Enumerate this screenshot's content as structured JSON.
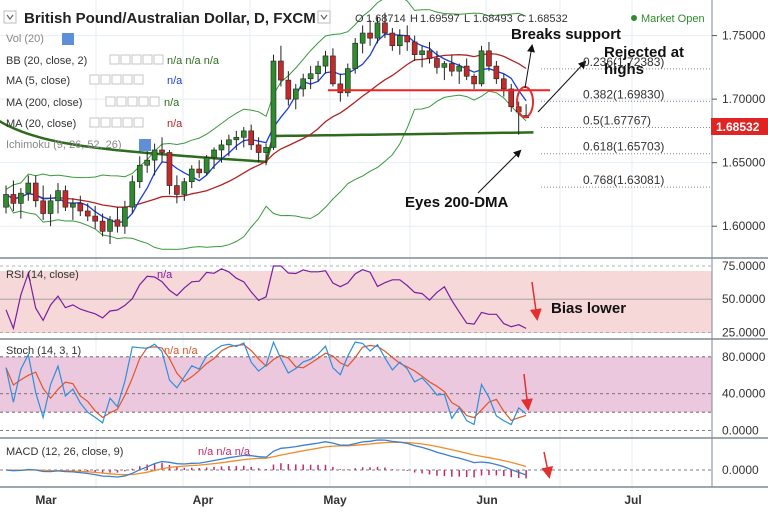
{
  "header": {
    "title": "British Pound/Australian Dollar, D, FXCM",
    "ohlc_prefix": "O",
    "open": "1.68714",
    "high_prefix": "H",
    "high": "1.69597",
    "low_prefix": "L",
    "low": "1.68493",
    "close_prefix": "C",
    "close": "1.68532",
    "market_status": "Market Open"
  },
  "indicators": {
    "vol": "Vol (20)",
    "bb": "BB (20, close, 2)",
    "bb_values": "n/a n/a n/a",
    "ma5": "MA (5, close)",
    "ma200": "MA (200, close)",
    "ma20": "MA (20, close)",
    "ichimoku": "Ichimoku (9, 26, 52, 26)",
    "na": "n/a"
  },
  "annotations": {
    "breaks_support": "Breaks support",
    "rejected_line1": "Rejected at",
    "rejected_line2": "highs",
    "eyes_200dma": "Eyes 200-DMA",
    "bias_lower": "Bias lower"
  },
  "price_axis": {
    "ticks": [
      "1.75000",
      "1.70000",
      "1.65000",
      "1.60000"
    ],
    "current": "1.68532"
  },
  "fib_levels": [
    {
      "label": "0.236(1.72383)",
      "value": 1.72383
    },
    {
      "label": "0.382(1.69830)",
      "value": 1.6983
    },
    {
      "label": "0.5(1.67767)",
      "value": 1.67767
    },
    {
      "label": "0.618(1.65703)",
      "value": 1.65703
    },
    {
      "label": "0.768(1.63081)",
      "value": 1.63081
    }
  ],
  "rsi": {
    "label": "RSI (14, close)",
    "value_label": "n/a",
    "ticks": [
      "75.0000",
      "50.0000",
      "25.0000"
    ]
  },
  "stoch": {
    "label": "Stoch (14, 3, 1)",
    "value_label": "n/a n/a",
    "ticks": [
      "80.0000",
      "40.0000",
      "0.0000"
    ]
  },
  "macd": {
    "label": "MACD (12, 26, close, 9)",
    "value_label": "n/a n/a n/a",
    "ticks": [
      "0.0000"
    ]
  },
  "x_axis": {
    "labels": [
      "Mar",
      "Apr",
      "May",
      "Jun",
      "Jul"
    ]
  },
  "colors": {
    "bull": "#2e8b2e",
    "bear": "#c42a2a",
    "ma5": "#1a3fd6",
    "ma20": "#b32222",
    "ma200": "#2e6b1d",
    "bb": "#3a9a3a",
    "support": "#ee2222",
    "arrow_red": "#e03030",
    "rsi_line": "#7a1fa2",
    "rsi_band": "#f6d8d8",
    "stoch_band": "#ebc8de",
    "stoch_k": "#2f8fd8",
    "stoch_d": "#e0552b",
    "macd_line": "#3a7fd0",
    "macd_signal": "#ef8c2c",
    "macd_hist": "#c22a6a",
    "price_badge": "#e02424"
  },
  "chart_data": [
    {
      "type": "candlestick",
      "title": "British Pound/Australian Dollar, D, FXCM",
      "x_labels": [
        "Mar",
        "Apr",
        "May",
        "Jun",
        "Jul"
      ],
      "ylim": [
        1.575,
        1.778
      ],
      "ohlc": [
        [
          1.615,
          1.632,
          1.61,
          1.625
        ],
        [
          1.625,
          1.636,
          1.612,
          1.618
        ],
        [
          1.618,
          1.63,
          1.606,
          1.626
        ],
        [
          1.626,
          1.64,
          1.62,
          1.634
        ],
        [
          1.634,
          1.64,
          1.615,
          1.62
        ],
        [
          1.62,
          1.632,
          1.605,
          1.61
        ],
        [
          1.61,
          1.625,
          1.6,
          1.62
        ],
        [
          1.62,
          1.634,
          1.61,
          1.628
        ],
        [
          1.628,
          1.632,
          1.612,
          1.615
        ],
        [
          1.615,
          1.622,
          1.605,
          1.618
        ],
        [
          1.618,
          1.624,
          1.608,
          1.612
        ],
        [
          1.612,
          1.618,
          1.604,
          1.608
        ],
        [
          1.608,
          1.616,
          1.598,
          1.604
        ],
        [
          1.604,
          1.61,
          1.592,
          1.596
        ],
        [
          1.596,
          1.608,
          1.586,
          1.605
        ],
        [
          1.605,
          1.615,
          1.595,
          1.6
        ],
        [
          1.6,
          1.62,
          1.594,
          1.615
        ],
        [
          1.615,
          1.64,
          1.61,
          1.635
        ],
        [
          1.635,
          1.655,
          1.63,
          1.648
        ],
        [
          1.648,
          1.66,
          1.642,
          1.652
        ],
        [
          1.652,
          1.665,
          1.64,
          1.66
        ],
        [
          1.66,
          1.67,
          1.65,
          1.658
        ],
        [
          1.658,
          1.66,
          1.625,
          1.632
        ],
        [
          1.632,
          1.64,
          1.618,
          1.625
        ],
        [
          1.625,
          1.638,
          1.62,
          1.635
        ],
        [
          1.635,
          1.648,
          1.63,
          1.645
        ],
        [
          1.645,
          1.652,
          1.638,
          1.642
        ],
        [
          1.642,
          1.656,
          1.64,
          1.654
        ],
        [
          1.654,
          1.662,
          1.645,
          1.66
        ],
        [
          1.66,
          1.668,
          1.65,
          1.664
        ],
        [
          1.664,
          1.672,
          1.655,
          1.668
        ],
        [
          1.668,
          1.675,
          1.66,
          1.67
        ],
        [
          1.67,
          1.678,
          1.662,
          1.675
        ],
        [
          1.675,
          1.68,
          1.66,
          1.664
        ],
        [
          1.664,
          1.67,
          1.65,
          1.658
        ],
        [
          1.658,
          1.665,
          1.648,
          1.662
        ],
        [
          1.662,
          1.735,
          1.66,
          1.73
        ],
        [
          1.73,
          1.742,
          1.71,
          1.715
        ],
        [
          1.715,
          1.722,
          1.695,
          1.7
        ],
        [
          1.7,
          1.712,
          1.692,
          1.708
        ],
        [
          1.708,
          1.72,
          1.702,
          1.716
        ],
        [
          1.716,
          1.726,
          1.708,
          1.72
        ],
        [
          1.72,
          1.73,
          1.714,
          1.726
        ],
        [
          1.726,
          1.738,
          1.72,
          1.734
        ],
        [
          1.734,
          1.74,
          1.71,
          1.712
        ],
        [
          1.712,
          1.72,
          1.698,
          1.705
        ],
        [
          1.705,
          1.728,
          1.702,
          1.724
        ],
        [
          1.724,
          1.748,
          1.72,
          1.744
        ],
        [
          1.744,
          1.758,
          1.736,
          1.752
        ],
        [
          1.752,
          1.762,
          1.742,
          1.748
        ],
        [
          1.748,
          1.765,
          1.744,
          1.76
        ],
        [
          1.76,
          1.768,
          1.748,
          1.752
        ],
        [
          1.752,
          1.756,
          1.738,
          1.742
        ],
        [
          1.742,
          1.755,
          1.735,
          1.75
        ],
        [
          1.75,
          1.758,
          1.738,
          1.745
        ],
        [
          1.745,
          1.75,
          1.73,
          1.735
        ],
        [
          1.735,
          1.742,
          1.725,
          1.738
        ],
        [
          1.738,
          1.745,
          1.728,
          1.732
        ],
        [
          1.732,
          1.738,
          1.72,
          1.725
        ],
        [
          1.725,
          1.73,
          1.715,
          1.728
        ],
        [
          1.728,
          1.735,
          1.718,
          1.722
        ],
        [
          1.722,
          1.728,
          1.712,
          1.726
        ],
        [
          1.726,
          1.732,
          1.715,
          1.718
        ],
        [
          1.718,
          1.72,
          1.708,
          1.712
        ],
        [
          1.712,
          1.742,
          1.71,
          1.738
        ],
        [
          1.738,
          1.745,
          1.722,
          1.726
        ],
        [
          1.726,
          1.73,
          1.712,
          1.716
        ],
        [
          1.716,
          1.72,
          1.702,
          1.708
        ],
        [
          1.708,
          1.712,
          1.69,
          1.694
        ],
        [
          1.694,
          1.698,
          1.672,
          1.69
        ],
        [
          1.68714,
          1.69597,
          1.68493,
          1.68532
        ]
      ],
      "fib_levels": [
        1.72383,
        1.6983,
        1.67767,
        1.65703,
        1.63081
      ],
      "support_level": 1.707
    },
    {
      "type": "line",
      "name": "RSI (14, close)",
      "ylim": [
        20,
        78
      ],
      "ticks": [
        75,
        50,
        25
      ]
    },
    {
      "type": "line",
      "name": "Stoch (14, 3, 1)",
      "ylim": [
        -8,
        95
      ],
      "ticks": [
        80,
        40,
        0
      ],
      "band": [
        20,
        80
      ]
    },
    {
      "type": "line",
      "name": "MACD (12, 26, close, 9)",
      "ticks": [
        0
      ]
    }
  ]
}
